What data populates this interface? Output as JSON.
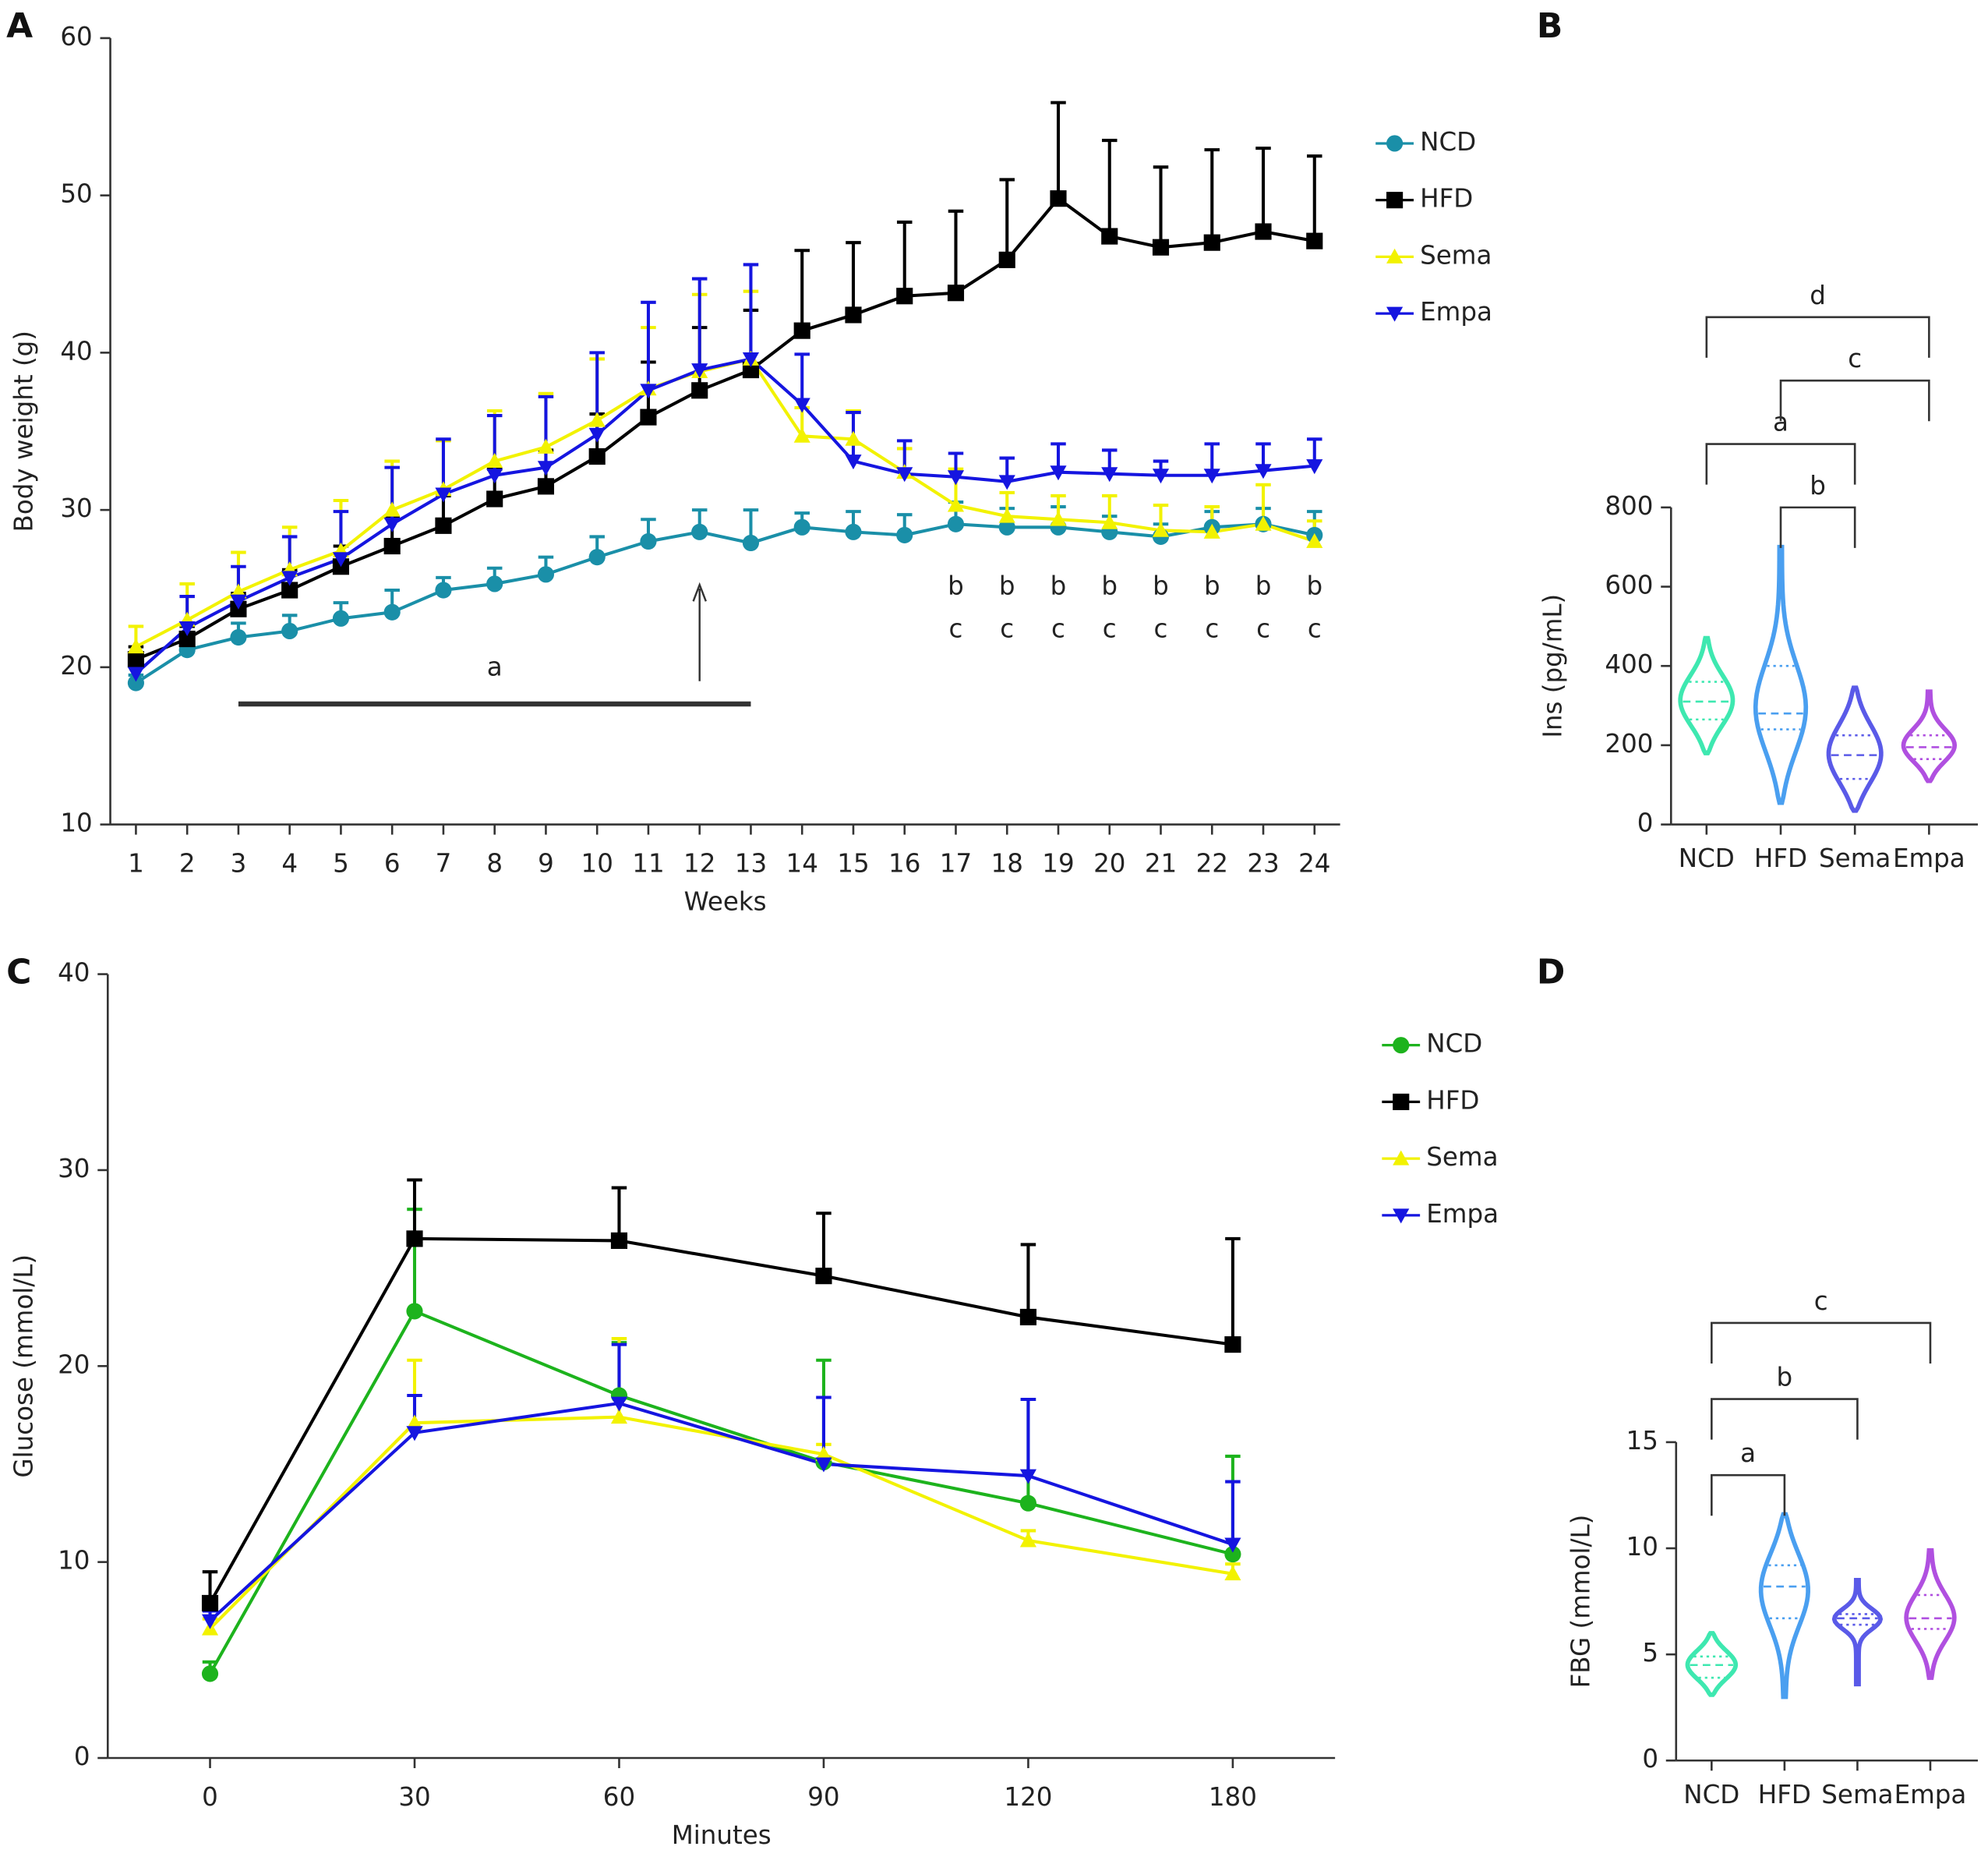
{
  "chart_data": [
    {
      "panel": "A",
      "type": "line",
      "x": [
        1,
        2,
        3,
        4,
        5,
        6,
        7,
        8,
        9,
        10,
        11,
        12,
        13,
        14,
        15,
        16,
        17,
        18,
        19,
        20,
        21,
        22,
        23,
        24
      ],
      "xlim": [
        0.5,
        24.5
      ],
      "xticks": [
        1,
        2,
        3,
        4,
        5,
        6,
        7,
        8,
        9,
        10,
        11,
        12,
        13,
        14,
        15,
        16,
        17,
        18,
        19,
        20,
        21,
        22,
        23,
        24
      ],
      "ylim": [
        10,
        60
      ],
      "yticks": [
        10,
        20,
        30,
        40,
        50,
        60
      ],
      "x_label": "Weeks",
      "y_label": "Body weight (g)",
      "series": [
        {
          "name": "NCD",
          "color": "#1a8fa8",
          "marker": "circle",
          "values": [
            19.0,
            21.1,
            21.9,
            22.3,
            23.1,
            23.5,
            24.9,
            25.3,
            25.9,
            27.0,
            28.0,
            28.6,
            27.9,
            28.9,
            28.6,
            28.4,
            29.1,
            28.9,
            28.9,
            28.6,
            28.3,
            28.9,
            29.1,
            28.4
          ],
          "errors": [
            0.5,
            0.6,
            0.9,
            1.0,
            1.0,
            1.4,
            0.8,
            1.0,
            1.1,
            1.3,
            1.4,
            1.4,
            2.1,
            0.9,
            1.3,
            1.3,
            1.4,
            1.2,
            1.3,
            1.0,
            0.8,
            1.0,
            1.0,
            1.5
          ]
        },
        {
          "name": "HFD",
          "color": "#000000",
          "marker": "square",
          "values": [
            20.5,
            21.8,
            23.7,
            24.9,
            26.4,
            27.7,
            29.0,
            30.7,
            31.5,
            33.4,
            35.9,
            37.6,
            38.9,
            41.4,
            42.4,
            43.6,
            43.8,
            45.9,
            49.8,
            47.4,
            46.7,
            47.0,
            47.7,
            47.1
          ],
          "errors": [
            0.8,
            0.8,
            1.0,
            1.3,
            1.3,
            1.8,
            1.9,
            1.9,
            2.3,
            2.7,
            3.5,
            4.0,
            3.8,
            5.1,
            4.6,
            4.7,
            5.2,
            5.1,
            6.1,
            6.1,
            5.1,
            5.9,
            5.3,
            5.4
          ]
        },
        {
          "name": "Sema",
          "color": "#f2f200",
          "marker": "triangle-up",
          "values": [
            21.3,
            23.0,
            24.8,
            26.2,
            27.4,
            30.0,
            31.3,
            33.1,
            34.0,
            35.7,
            37.7,
            38.8,
            39.6,
            34.7,
            34.5,
            32.4,
            30.3,
            29.6,
            29.4,
            29.2,
            28.7,
            28.6,
            29.1,
            28.0
          ],
          "errors": [
            1.3,
            2.3,
            2.5,
            2.7,
            3.2,
            3.1,
            3.1,
            3.2,
            3.4,
            3.9,
            3.9,
            4.9,
            4.3,
            1.8,
            1.8,
            1.5,
            2.3,
            1.5,
            1.5,
            1.7,
            1.6,
            1.6,
            2.5,
            1.3
          ]
        },
        {
          "name": "Empa",
          "color": "#1515e0",
          "marker": "triangle-down",
          "values": [
            19.6,
            22.5,
            24.2,
            25.7,
            26.9,
            29.1,
            31.0,
            32.2,
            32.7,
            34.8,
            37.6,
            38.9,
            39.6,
            36.7,
            33.1,
            32.3,
            32.1,
            31.8,
            32.4,
            32.3,
            32.2,
            32.2,
            32.5,
            32.8
          ],
          "errors": [
            0.8,
            2.0,
            2.2,
            2.6,
            3.0,
            3.6,
            3.5,
            3.8,
            4.5,
            5.2,
            5.6,
            5.8,
            6.0,
            3.2,
            3.1,
            2.1,
            1.5,
            1.5,
            1.8,
            1.5,
            0.9,
            2.0,
            1.7,
            1.7
          ]
        }
      ],
      "bar_label": "a",
      "bar_weeks": [
        3,
        13
      ],
      "arrow_week": 12,
      "letters": [
        "b",
        "c"
      ],
      "letter_weeks": [
        17,
        18,
        19,
        20,
        21,
        22,
        23,
        24
      ]
    },
    {
      "panel": "B",
      "type": "violin",
      "ylim": [
        0,
        800
      ],
      "yticks": [
        0,
        200,
        400,
        600,
        800
      ],
      "y_label": "Ins (pg/mL)",
      "groups": [
        {
          "name": "NCD",
          "color": "#3ee8b0",
          "min": 180,
          "q1": 265,
          "median": 310,
          "q3": 360,
          "max": 470
        },
        {
          "name": "HFD",
          "color": "#4a9ff0",
          "min": 55,
          "q1": 240,
          "median": 280,
          "q3": 400,
          "max": 700
        },
        {
          "name": "Sema",
          "color": "#5a5ae8",
          "min": 35,
          "q1": 115,
          "median": 175,
          "q3": 225,
          "max": 345
        },
        {
          "name": "Empa",
          "color": "#b050e0",
          "min": 110,
          "q1": 165,
          "median": 195,
          "q3": 225,
          "max": 335
        }
      ],
      "brackets": [
        {
          "label": "b",
          "from": "HFD",
          "to": "Sema"
        },
        {
          "label": "a",
          "from": "NCD",
          "to": "Sema"
        },
        {
          "label": "c",
          "from": "HFD",
          "to": "Empa"
        },
        {
          "label": "d",
          "from": "NCD",
          "to": "Empa"
        }
      ]
    },
    {
      "panel": "C",
      "type": "line",
      "categories": [
        "0",
        "30",
        "60",
        "90",
        "120",
        "180"
      ],
      "ylim": [
        0,
        40
      ],
      "yticks": [
        0,
        10,
        20,
        30,
        40
      ],
      "x_label": "Minutes",
      "y_label": "Glucose (mmol/L)",
      "series": [
        {
          "name": "NCD",
          "color": "#1db31d",
          "marker": "circle",
          "values": [
            4.3,
            22.8,
            18.5,
            15.1,
            13.0,
            10.4
          ],
          "errors": [
            0.6,
            5.2,
            2.7,
            5.2,
            5.3,
            5.0
          ]
        },
        {
          "name": "HFD",
          "color": "#000000",
          "marker": "square",
          "values": [
            7.9,
            26.5,
            26.4,
            24.6,
            22.5,
            21.1
          ],
          "errors": [
            1.6,
            3.0,
            2.7,
            3.2,
            3.7,
            5.4
          ]
        },
        {
          "name": "Sema",
          "color": "#f2f200",
          "marker": "triangle-up",
          "values": [
            6.6,
            17.1,
            17.4,
            15.5,
            11.1,
            9.4
          ],
          "errors": [
            0.5,
            3.2,
            4.0,
            0.5,
            0.5,
            0.5
          ]
        },
        {
          "name": "Empa",
          "color": "#1515e0",
          "marker": "triangle-down",
          "values": [
            7.0,
            16.6,
            18.1,
            15.0,
            14.4,
            10.9
          ],
          "errors": [
            0.5,
            1.9,
            3.0,
            3.4,
            3.9,
            3.2
          ]
        }
      ]
    },
    {
      "panel": "D",
      "type": "violin",
      "ylim": [
        0,
        15
      ],
      "yticks": [
        0,
        5,
        10,
        15
      ],
      "y_label": "FBG (mmol/L)",
      "groups": [
        {
          "name": "NCD",
          "color": "#3ee8b0",
          "min": 3.1,
          "q1": 3.9,
          "median": 4.5,
          "q3": 4.9,
          "max": 6.0
        },
        {
          "name": "HFD",
          "color": "#4a9ff0",
          "min": 3.0,
          "q1": 6.7,
          "median": 8.2,
          "q3": 9.2,
          "max": 11.6
        },
        {
          "name": "Sema",
          "color": "#5a5ae8",
          "min": 3.6,
          "q1": 6.4,
          "median": 6.7,
          "q3": 6.9,
          "max": 8.5
        },
        {
          "name": "Empa",
          "color": "#b050e0",
          "min": 3.9,
          "q1": 6.2,
          "median": 6.7,
          "q3": 7.8,
          "max": 9.9
        }
      ],
      "brackets": [
        {
          "label": "a",
          "from": "NCD",
          "to": "HFD"
        },
        {
          "label": "b",
          "from": "NCD",
          "to": "Sema"
        },
        {
          "label": "c",
          "from": "NCD",
          "to": "Empa"
        }
      ]
    }
  ]
}
